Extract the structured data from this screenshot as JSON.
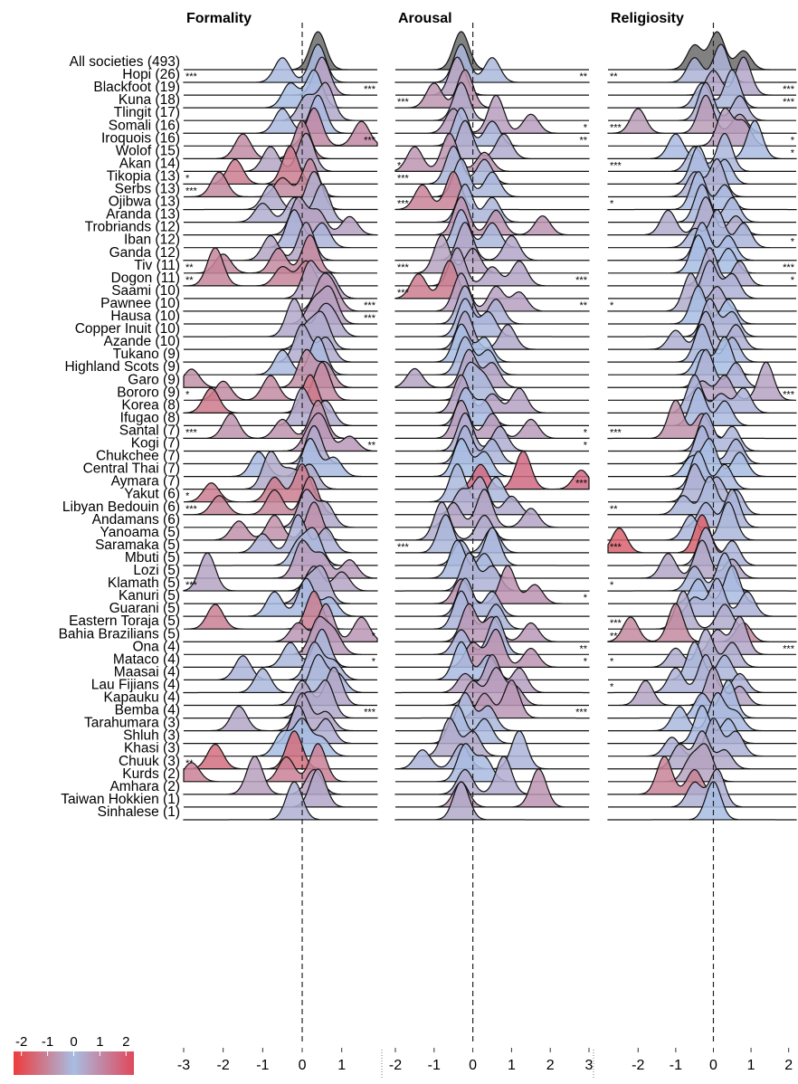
{
  "chart_data": {
    "type": "ridgeline",
    "categories": [
      "All societies (493)",
      "Hopi (26)",
      "Blackfoot (19)",
      "Kuna (18)",
      "Tlingit (17)",
      "Somali (16)",
      "Iroquois (16)",
      "Wolof (15)",
      "Akan (14)",
      "Tikopia (13)",
      "Serbs (13)",
      "Ojibwa (13)",
      "Aranda (13)",
      "Trobriands (12)",
      "Iban (12)",
      "Ganda (12)",
      "Tiv (11)",
      "Dogon (11)",
      "Saami (10)",
      "Pawnee (10)",
      "Hausa (10)",
      "Copper Inuit (10)",
      "Azande (10)",
      "Tukano (9)",
      "Highland Scots (9)",
      "Garo (9)",
      "Bororo (9)",
      "Korea (8)",
      "Ifugao (8)",
      "Santal (7)",
      "Kogi (7)",
      "Chukchee (7)",
      "Central Thai (7)",
      "Aymara (7)",
      "Yakut (6)",
      "Libyan Bedouin (6)",
      "Andamans (6)",
      "Yanoama (5)",
      "Saramaka (5)",
      "Mbuti (5)",
      "Lozi (5)",
      "Klamath (5)",
      "Kanuri (5)",
      "Guarani (5)",
      "Eastern Toraja (5)",
      "Bahia Brazilians (5)",
      "Ona (4)",
      "Mataco (4)",
      "Maasai (4)",
      "Lau Fijians (4)",
      "Kapauku (4)",
      "Bemba (4)",
      "Tarahumara (3)",
      "Shluh (3)",
      "Khasi (3)",
      "Chuuk (3)",
      "Kurds (2)",
      "Amhara (2)",
      "Taiwan Hokkien (1)",
      "Sinhalese (1)"
    ],
    "overall_color": "#6b6b6b",
    "colorbar": {
      "lim": [
        -2.3,
        2.3
      ],
      "ticks": [
        -2,
        -1,
        0,
        1,
        2
      ],
      "colors": [
        "#ee3b3b",
        "#a8bde3",
        "#e0485a"
      ]
    },
    "panels": [
      {
        "title": "Formality",
        "xlim": [
          -3,
          1.9
        ],
        "xticks": [
          -3,
          -2,
          -1,
          0,
          1
        ],
        "modes": [
          [
            0.4
          ],
          [
            0.4,
            -0.5
          ],
          [
            0.5
          ],
          [
            0.3,
            -0.3
          ],
          [
            0.6,
            0.1
          ],
          [
            0.4,
            -0.5
          ],
          [
            0.3,
            1.5
          ],
          [
            0,
            -1.5
          ],
          [
            0.1,
            -0.8
          ],
          [
            -0.3,
            -1.7
          ],
          [
            0.2,
            -2.1,
            -0.5
          ],
          [
            0.3,
            -0.8
          ],
          [
            0.5,
            -0.2,
            -1
          ],
          [
            -0.1,
            0.4,
            1.2
          ],
          [
            -0.2,
            0.5
          ],
          [
            0.1,
            -0.8
          ],
          [
            0.2,
            -0.6,
            -2
          ],
          [
            -2.2,
            0.1,
            -0.5
          ],
          [
            0.2,
            0.7
          ],
          [
            0.5,
            0.8
          ],
          [
            0.7,
            0.3
          ],
          [
            -0.2,
            0.5,
            0.8
          ],
          [
            0.5,
            0.1
          ],
          [
            0,
            0.6
          ],
          [
            0.4,
            -0.5
          ],
          [
            0.1,
            0.6,
            -2.8
          ],
          [
            0.5,
            -0.8,
            -2
          ],
          [
            0.2,
            -2.3
          ],
          [
            0,
            0.6
          ],
          [
            0.4,
            -1.8,
            -0.5
          ],
          [
            0.5,
            0.2,
            1.2
          ],
          [
            0.3
          ],
          [
            0.2,
            -1.1,
            0.8
          ],
          [
            -0.8,
            0.2,
            -0.3
          ],
          [
            0,
            -0.7,
            -2.3
          ],
          [
            0.2,
            -0.7,
            -2.1
          ],
          [
            0.1,
            0.6
          ],
          [
            0.3,
            -0.7,
            -1.6
          ],
          [
            -0.1,
            0.6,
            -1
          ],
          [
            0.3,
            -0.1
          ],
          [
            0,
            0.5,
            1.2
          ],
          [
            -2.4,
            0.3,
            1
          ],
          [
            0.5,
            0.1
          ],
          [
            0.1,
            -0.7,
            0.7
          ],
          [
            0.3,
            -2.2
          ],
          [
            0.6,
            1.5,
            -0.1
          ],
          [
            0.4,
            0.8
          ],
          [
            0.5,
            -0.3
          ],
          [
            0.3,
            -1.5,
            0.8
          ],
          [
            0.4,
            -1,
            0.9
          ],
          [
            0.8,
            0
          ],
          [
            0.6,
            0.1
          ],
          [
            0,
            -1.6,
            0.6
          ],
          [
            -0.1,
            0.6
          ],
          [
            0,
            -0.5,
            0.5
          ],
          [
            -0.2,
            -2.2
          ],
          [
            0.4,
            -0.4,
            -2.8
          ],
          [
            -1.2,
            0.3
          ],
          [
            0.4
          ],
          [
            -0.2
          ]
        ],
        "stars": [
          null,
          "***",
          "***",
          null,
          null,
          null,
          "***",
          null,
          null,
          "*",
          "***",
          null,
          null,
          null,
          null,
          null,
          "**",
          "**",
          null,
          "***",
          "***",
          null,
          null,
          null,
          null,
          null,
          "*",
          null,
          null,
          "***",
          "**",
          null,
          null,
          null,
          "*",
          "***",
          null,
          null,
          null,
          null,
          null,
          "***",
          null,
          null,
          null,
          "*",
          null,
          "*",
          null,
          null,
          null,
          "***",
          null,
          null,
          null,
          "**",
          null,
          null,
          null,
          null
        ]
      },
      {
        "title": "Arousal",
        "xlim": [
          -2,
          3
        ],
        "xticks": [
          -2,
          -1,
          0,
          1,
          2,
          3
        ],
        "modes": [
          [
            -0.3
          ],
          [
            -0.3,
            0.5
          ],
          [
            -0.4
          ],
          [
            -0.2,
            -1
          ],
          [
            -0.3
          ],
          [
            0.6,
            -0.5,
            1.5
          ],
          [
            -0.3,
            0.5
          ],
          [
            -0.2,
            0.8
          ],
          [
            -0.6,
            -1.5,
            0.3
          ],
          [
            -0.5,
            0.3
          ],
          [
            -0.3,
            0.5
          ],
          [
            -0.5,
            -1.3
          ],
          [
            -0.2,
            0.5
          ],
          [
            -0.3,
            0.6,
            1.8
          ],
          [
            -0.3,
            0.5
          ],
          [
            -0.2,
            1
          ],
          [
            -0.8,
            0
          ],
          [
            -0.4,
            1.2,
            0.5
          ],
          [
            -0.6,
            -1.4
          ],
          [
            -0.3,
            0.6,
            1.2
          ],
          [
            -0.2,
            0.6
          ],
          [
            -0.2,
            0.4
          ],
          [
            -0.2,
            0.9
          ],
          [
            -0.3,
            0.3
          ],
          [
            -0.2,
            0.4
          ],
          [
            -0.1,
            0.5,
            -1.5
          ],
          [
            -0.1,
            0.3
          ],
          [
            -0.3,
            1.2,
            0.5
          ],
          [
            -0.2,
            0.3
          ],
          [
            -0.3,
            0.5,
            1.5
          ],
          [
            -0.2,
            0.7
          ],
          [
            -0.2,
            0.5
          ],
          [
            -0.3,
            0.3
          ],
          [
            1.3,
            0.2,
            2.8
          ],
          [
            -0.4,
            0.6
          ],
          [
            0.2,
            -0.3,
            1
          ],
          [
            0.3,
            -0.5,
            1.5
          ],
          [
            -0.8,
            0.3
          ],
          [
            -0.7,
            0.5
          ],
          [
            0.5,
            -0.3
          ],
          [
            -0.4,
            0.3
          ],
          [
            -0.1,
            0.5
          ],
          [
            0.9,
            -0.3,
            1.6
          ],
          [
            -0.2,
            0.5
          ],
          [
            -0.3,
            0.6
          ],
          [
            -0.1,
            0.5,
            1.5
          ],
          [
            0.6,
            -0.3
          ],
          [
            0.6,
            0,
            1.5
          ],
          [
            -0.3,
            0.4
          ],
          [
            0.5,
            1.2,
            -0.2
          ],
          [
            0.6,
            0,
            1.1
          ],
          [
            1,
            0.3
          ],
          [
            -0.2,
            0.4
          ],
          [
            -0.4,
            0.3
          ],
          [
            -0.6,
            0
          ],
          [
            1.2,
            -0.3,
            -1.3
          ],
          [
            -0.2,
            0.3
          ],
          [
            0.8,
            -0.2
          ],
          [
            1.7,
            -0.3
          ],
          [
            -0.3
          ]
        ],
        "stars": [
          null,
          "**",
          null,
          "***",
          null,
          "*",
          "**",
          null,
          "*",
          "***",
          null,
          "***",
          null,
          null,
          null,
          null,
          "***",
          "***",
          "***",
          "**",
          null,
          null,
          null,
          null,
          null,
          null,
          null,
          null,
          null,
          "*",
          "*",
          null,
          null,
          "***",
          null,
          null,
          null,
          null,
          "***",
          null,
          null,
          null,
          "*",
          null,
          null,
          null,
          "**",
          "*",
          null,
          null,
          null,
          "***",
          null,
          null,
          null,
          null,
          null,
          null,
          null,
          null
        ]
      },
      {
        "title": "Religiosity",
        "xlim": [
          -2.8,
          2.2
        ],
        "xticks": [
          -2,
          -1,
          0,
          1,
          2
        ],
        "modes": [
          [
            0.1,
            -0.5,
            0.8
          ],
          [
            0.2,
            -0.5
          ],
          [
            0.8,
            0
          ],
          [
            0.5,
            -0.3
          ],
          [
            -0.2,
            0.7
          ],
          [
            -0.2,
            -2,
            0.7
          ],
          [
            0.3,
            0.8
          ],
          [
            1.1,
            -1
          ],
          [
            0.3,
            -0.5
          ],
          [
            -0.4,
            0.3
          ],
          [
            0.1,
            -0.5
          ],
          [
            -0.4,
            0.3
          ],
          [
            -0.3,
            0.5
          ],
          [
            -0.2,
            -1.2,
            0.6
          ],
          [
            0.1,
            0.8,
            -0.5
          ],
          [
            -0.3,
            0.4
          ],
          [
            -0.4,
            0.4
          ],
          [
            -0.1,
            0.7
          ],
          [
            -0.1,
            0.5
          ],
          [
            -0.6,
            0.1
          ],
          [
            -0.4,
            0.4
          ],
          [
            -0.1,
            0.5
          ],
          [
            -0.2,
            0.6,
            -1
          ],
          [
            -0.3,
            0.5
          ],
          [
            0.3,
            -0.3
          ],
          [
            -0.2,
            0.6
          ],
          [
            1.4,
            0.3,
            -0.3
          ],
          [
            -0.5,
            0.8,
            0.2
          ],
          [
            -0.4,
            0.3
          ],
          [
            -1,
            -0.3
          ],
          [
            -0.2,
            0.5
          ],
          [
            -0.3,
            0.6
          ],
          [
            -0.1,
            0.7,
            -0.6
          ],
          [
            -0.4,
            0.3
          ],
          [
            -0.5,
            0.1
          ],
          [
            -0.1,
            0.6,
            -0.8
          ],
          [
            0.5,
            -0.2
          ],
          [
            0.4,
            -0.6
          ],
          [
            -0.3,
            -2.5
          ],
          [
            -0.2,
            0.5
          ],
          [
            -0.3,
            -1.2,
            0.5
          ],
          [
            0.3,
            -0.5
          ],
          [
            0.5,
            -0.4
          ],
          [
            0.1,
            0.9,
            -0.5
          ],
          [
            -0.8,
            0.3
          ],
          [
            -1,
            -2.2,
            0.8
          ],
          [
            0.7,
            0.1
          ],
          [
            -0.2,
            0.5,
            -1
          ],
          [
            -0.5,
            0.3
          ],
          [
            -0.2,
            -1,
            0.7
          ],
          [
            0,
            -1.8,
            0.7
          ],
          [
            0.4,
            -0.3
          ],
          [
            0.1,
            -0.9,
            0.6
          ],
          [
            -0.3,
            0.4
          ],
          [
            0,
            0.6,
            -1.1
          ],
          [
            -0.3,
            -0.9,
            0.3
          ],
          [
            -0.2,
            -0.6
          ],
          [
            -1.3,
            -0.5
          ],
          [
            0.1,
            -0.5
          ],
          [
            0
          ]
        ],
        "stars": [
          null,
          "**",
          "***",
          "***",
          null,
          "***",
          "*",
          "*",
          "***",
          null,
          null,
          "*",
          null,
          null,
          "*",
          null,
          "***",
          "*",
          null,
          "*",
          null,
          null,
          null,
          null,
          null,
          null,
          "***",
          null,
          null,
          "***",
          null,
          null,
          null,
          null,
          null,
          "**",
          null,
          null,
          "***",
          null,
          null,
          "*",
          null,
          null,
          "***",
          "**",
          "***",
          "*",
          null,
          "*",
          null,
          null,
          null,
          null,
          null,
          null,
          null,
          null,
          null,
          null
        ]
      }
    ]
  }
}
